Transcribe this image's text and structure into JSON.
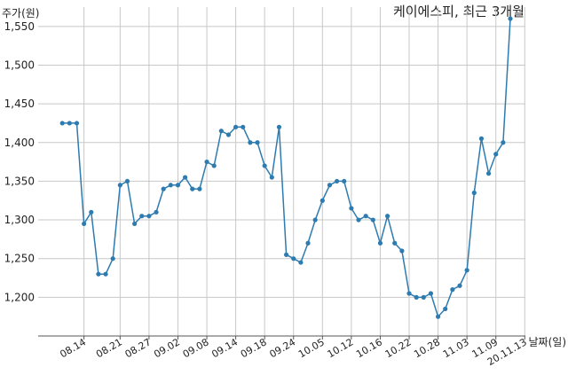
{
  "chart_data": {
    "type": "line",
    "title": "케이에스피, 최근 3개월",
    "ylabel": "주가(원)",
    "xlabel": "날짜(일)",
    "ylim": [
      1150,
      1575
    ],
    "yticks": [
      1200,
      1250,
      1300,
      1350,
      1400,
      1450,
      1500,
      1550
    ],
    "ytick_labels": [
      "1,200",
      "1,250",
      "1,300",
      "1,350",
      "1,400",
      "1,450",
      "1,500",
      "1,550"
    ],
    "xtick_labels": [
      "08.14",
      "08.21",
      "08.27",
      "09.02",
      "09.08",
      "09.14",
      "09.18",
      "09.24",
      "10.05",
      "10.12",
      "10.16",
      "10.22",
      "10.28",
      "11.03",
      "11.09",
      "20.11.13"
    ],
    "xtick_index": [
      3,
      8,
      12,
      16,
      20,
      24,
      28,
      32,
      36,
      40,
      44,
      48,
      52,
      56,
      60,
      64
    ],
    "grid": true,
    "series": [
      {
        "color": "#2e7bb0",
        "values": [
          1425,
          1425,
          1425,
          1295,
          1310,
          1230,
          1230,
          1250,
          1345,
          1350,
          1295,
          1305,
          1305,
          1310,
          1340,
          1345,
          1345,
          1355,
          1340,
          1340,
          1375,
          1370,
          1415,
          1410,
          1420,
          1420,
          1400,
          1400,
          1370,
          1355,
          1420,
          1255,
          1250,
          1245,
          1270,
          1300,
          1325,
          1345,
          1350,
          1350,
          1315,
          1300,
          1305,
          1300,
          1270,
          1305,
          1270,
          1260,
          1205,
          1200,
          1200,
          1205,
          1175,
          1185,
          1210,
          1215,
          1235,
          1335,
          1405,
          1360,
          1385,
          1400,
          1560
        ]
      }
    ]
  }
}
